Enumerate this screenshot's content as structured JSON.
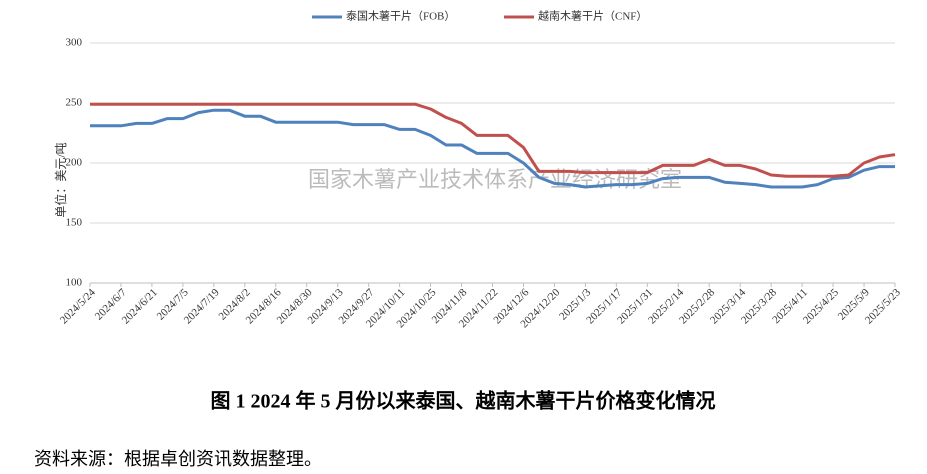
{
  "chart_data": {
    "type": "line",
    "y_label": "单位：美元/吨",
    "watermark": "国家木薯产业技术体系产业经济研究室",
    "caption": "图 1   2024 年 5 月份以来泰国、越南木薯干片价格变化情况",
    "source": "资料来源：根据卓创资讯数据整理。",
    "categories": [
      "2024/5/24",
      null,
      "2024/6/7",
      null,
      "2024/6/21",
      null,
      "2024/7/5",
      null,
      "2024/7/19",
      null,
      "2024/8/2",
      null,
      "2024/8/16",
      null,
      "2024/8/30",
      null,
      "2024/9/13",
      null,
      "2024/9/27",
      null,
      "2024/10/11",
      null,
      "2024/10/25",
      null,
      "2024/11/8",
      null,
      "2024/11/22",
      null,
      "2024/12/6",
      null,
      "2024/12/20",
      null,
      "2025/1/3",
      null,
      "2025/1/17",
      null,
      "2025/1/31",
      null,
      "2025/2/14",
      null,
      "2025/2/28",
      null,
      "2025/3/14",
      null,
      "2025/3/28",
      null,
      "2025/4/11",
      null,
      "2025/4/25",
      null,
      "2025/5/9",
      null,
      "2025/5/23"
    ],
    "series": [
      {
        "name": "泰国木薯干片（FOB）",
        "color": "#4f81bd",
        "values": [
          231,
          231,
          231,
          233,
          233,
          237,
          237,
          242,
          244,
          244,
          239,
          239,
          234,
          234,
          234,
          234,
          234,
          232,
          232,
          232,
          228,
          228,
          223,
          215,
          215,
          208,
          208,
          208,
          200,
          188,
          183,
          182,
          180,
          181,
          182,
          182,
          183,
          187,
          188,
          188,
          188,
          184,
          183,
          182,
          180,
          180,
          180,
          182,
          187,
          188,
          194,
          197,
          197
        ]
      },
      {
        "name": "越南木薯干片（CNF）",
        "color": "#c0504d",
        "values": [
          249,
          249,
          249,
          249,
          249,
          249,
          249,
          249,
          249,
          249,
          249,
          249,
          249,
          249,
          249,
          249,
          249,
          249,
          249,
          249,
          249,
          249,
          245,
          238,
          233,
          223,
          223,
          223,
          213,
          193,
          193,
          193,
          192,
          192,
          192,
          192,
          192,
          198,
          198,
          198,
          203,
          198,
          198,
          195,
          190,
          189,
          189,
          189,
          189,
          190,
          200,
          205,
          207
        ]
      }
    ],
    "ylim": [
      100,
      300
    ],
    "yticks": [
      100,
      150,
      200,
      250,
      300
    ],
    "grid": true
  }
}
